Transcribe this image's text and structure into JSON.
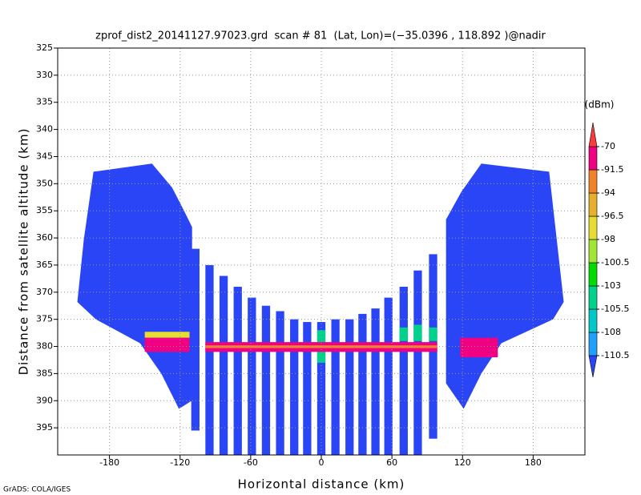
{
  "chart_data": {
    "type": "shaded",
    "title": "zprof_dist2_20141127.97023.grd  scan # 81  (Lat, Lon)=(−35.0396 , 118.892 )@nadir",
    "xlabel": "Horizontal distance  (km)",
    "ylabel": "Distance from satellite altitude  (km)",
    "credit": "GrADS: COLA/IGES",
    "xlim": [
      -224,
      224
    ],
    "ylim": [
      325,
      400
    ],
    "y_inverted": true,
    "xticks": [
      -180,
      -120,
      -60,
      0,
      60,
      120,
      180
    ],
    "yticks": [
      325,
      330,
      335,
      340,
      345,
      350,
      355,
      360,
      365,
      370,
      375,
      380,
      385,
      390,
      395
    ],
    "grid": true,
    "colorbar": {
      "unit": "(dBm)",
      "levels": [
        -110.5,
        -108,
        -105.5,
        -103,
        -100.5,
        -98,
        -96.5,
        -94,
        -91.5,
        -70
      ],
      "colors": [
        "#2a45f5",
        "#1ea0ff",
        "#00c8c8",
        "#00d28c",
        "#00dc00",
        "#a0e632",
        "#e6dc32",
        "#e6af2d",
        "#f08228",
        "#f00082",
        "#fa3c3c"
      ]
    },
    "regions": [
      {
        "x": [
          -193.6,
          -143.9,
          -126.8,
          -116.6,
          -109.8,
          -110,
          -121,
          -136,
          -154,
          -191.6,
          -207.3,
          -201.8
        ],
        "y": [
          347.8,
          346.3,
          350.7,
          355,
          358,
          390,
          391.5,
          385,
          379.4,
          375,
          371.8,
          360.3
        ],
        "value": -115
      },
      {
        "x": [
          106,
          119,
          136,
          193.6,
          206,
          197,
          153,
          136,
          121,
          106
        ],
        "y": [
          356.6,
          351.5,
          346.3,
          347.8,
          371.8,
          375,
          379.4,
          385,
          391.5,
          386.8
        ],
        "value": -115
      },
      {
        "x": [
          -110.5,
          -103.5
        ],
        "y": [
          362,
          395.5
        ],
        "value": -115
      },
      {
        "x": [
          -98.5,
          -91.5
        ],
        "y": [
          365,
          400
        ],
        "value": -115
      },
      {
        "x": [
          -86.5,
          -79.5
        ],
        "y": [
          367,
          400
        ],
        "value": -115
      },
      {
        "x": [
          -74.5,
          -67.5
        ],
        "y": [
          369,
          400
        ],
        "value": -115
      },
      {
        "x": [
          -62.5,
          -55.5
        ],
        "y": [
          371,
          400
        ],
        "value": -115
      },
      {
        "x": [
          -50.5,
          -43.5
        ],
        "y": [
          372.5,
          400
        ],
        "value": -115
      },
      {
        "x": [
          -38.5,
          -31.5
        ],
        "y": [
          373.5,
          400
        ],
        "value": -115
      },
      {
        "x": [
          -26.5,
          -19.5
        ],
        "y": [
          375,
          400
        ],
        "value": -115
      },
      {
        "x": [
          -15.5,
          -8.5
        ],
        "y": [
          375.5,
          400
        ],
        "value": -115
      },
      {
        "x": [
          -3.5,
          3.5
        ],
        "y": [
          375.5,
          400
        ],
        "value": -115
      },
      {
        "x": [
          8.5,
          15.5
        ],
        "y": [
          375,
          400
        ],
        "value": -115
      },
      {
        "x": [
          20.5,
          27.5
        ],
        "y": [
          375,
          400
        ],
        "value": -115
      },
      {
        "x": [
          31.5,
          38.5
        ],
        "y": [
          374,
          400
        ],
        "value": -115
      },
      {
        "x": [
          42.5,
          49.5
        ],
        "y": [
          373,
          400
        ],
        "value": -115
      },
      {
        "x": [
          53.5,
          60.5
        ],
        "y": [
          371,
          400
        ],
        "value": -115
      },
      {
        "x": [
          66.5,
          73.5
        ],
        "y": [
          369,
          400
        ],
        "value": -115
      },
      {
        "x": [
          78.5,
          85.5
        ],
        "y": [
          366,
          400
        ],
        "value": -115
      },
      {
        "x": [
          91.5,
          98.5
        ],
        "y": [
          363,
          397
        ],
        "value": -115
      },
      {
        "x": [
          -3.5,
          3.5
        ],
        "y": [
          377,
          383
        ],
        "value": -104
      },
      {
        "x": [
          66.5,
          73.5
        ],
        "y": [
          376.5,
          379
        ],
        "value": -104
      },
      {
        "x": [
          78.5,
          85.5
        ],
        "y": [
          376,
          379
        ],
        "value": -104
      },
      {
        "x": [
          91.5,
          98.5
        ],
        "y": [
          376.5,
          379
        ],
        "value": -104
      },
      {
        "x": [
          -150,
          -112
        ],
        "y": [
          377.3,
          378.4
        ],
        "value": -97
      },
      {
        "x": [
          -150,
          -112
        ],
        "y": [
          378.4,
          381
        ],
        "value": -85
      },
      {
        "x": [
          118,
          150
        ],
        "y": [
          378.4,
          382
        ],
        "value": -85
      },
      {
        "x": [
          -98.5,
          98.5
        ],
        "y": [
          379.2,
          381
        ],
        "value": -85
      },
      {
        "x": [
          -98.5,
          98.5
        ],
        "y": [
          379.8,
          380.3
        ],
        "value": -93
      }
    ]
  }
}
